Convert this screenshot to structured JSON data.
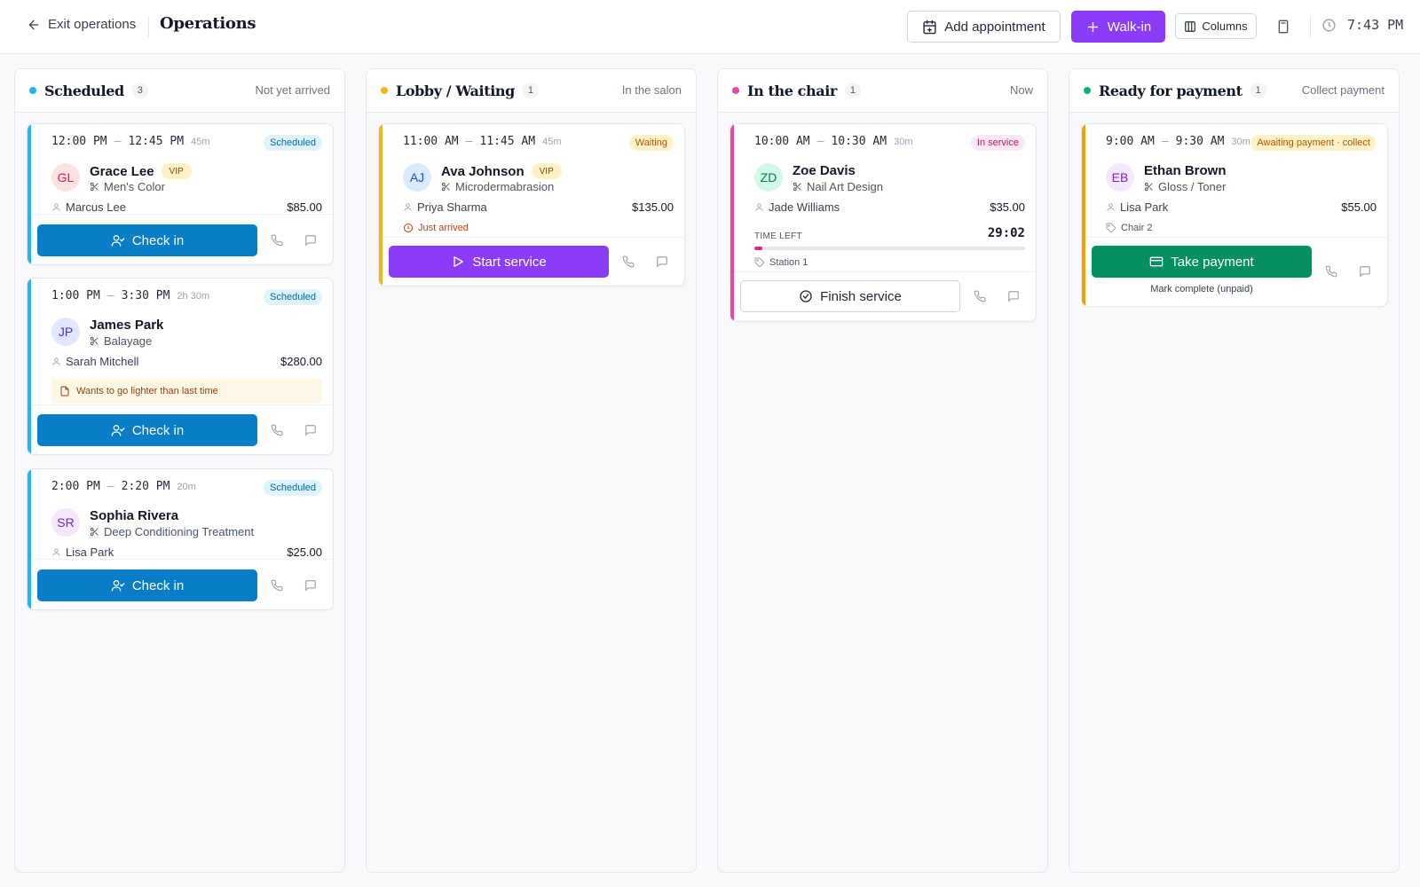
{
  "topbar": {
    "exit_label": "Exit operations",
    "title": "Operations",
    "add_appointment_label": "Add appointment",
    "walkin_label": "Walk-in",
    "columns_label": "Columns",
    "clock_time": "7:43 PM"
  },
  "columns": [
    {
      "title": "Scheduled",
      "count": "3",
      "subtitle": "Not yet arrived",
      "color": "#1fb5ee",
      "cards": [
        {
          "start": "12:00 PM",
          "end": "12:45 PM",
          "duration": "45m",
          "status": "Scheduled",
          "initials": "GL",
          "client": "Grace Lee",
          "vip": "VIP",
          "service": "Men's Color",
          "staff": "Marcus Lee",
          "price": "$85.00",
          "action": "Check in"
        },
        {
          "start": "1:00 PM",
          "end": "3:30 PM",
          "duration": "2h 30m",
          "status": "Scheduled",
          "initials": "JP",
          "client": "James Park",
          "service": "Balayage",
          "staff": "Sarah Mitchell",
          "price": "$280.00",
          "note": "Wants to go lighter than last time",
          "action": "Check in"
        },
        {
          "start": "2:00 PM",
          "end": "2:20 PM",
          "duration": "20m",
          "status": "Scheduled",
          "initials": "SR",
          "client": "Sophia Rivera",
          "service": "Deep Conditioning Treatment",
          "staff": "Lisa Park",
          "price": "$25.00",
          "action": "Check in"
        }
      ]
    },
    {
      "title": "Lobby / Waiting",
      "count": "1",
      "subtitle": "In the salon",
      "color": "#f5b41b",
      "cards": [
        {
          "start": "11:00 AM",
          "end": "11:45 AM",
          "duration": "45m",
          "status": "Waiting",
          "initials": "AJ",
          "client": "Ava Johnson",
          "vip": "VIP",
          "service": "Microdermabrasion",
          "staff": "Priya Sharma",
          "price": "$135.00",
          "arrived": "Just arrived",
          "action": "Start service"
        }
      ]
    },
    {
      "title": "In the chair",
      "count": "1",
      "subtitle": "Now",
      "color": "#ec4899",
      "cards": [
        {
          "start": "10:00 AM",
          "end": "10:30 AM",
          "duration": "30m",
          "status": "In service",
          "initials": "ZD",
          "client": "Zoe Davis",
          "service": "Nail Art Design",
          "staff": "Jade Williams",
          "price": "$35.00",
          "time_left_label": "TIME LEFT",
          "time_left": "29:02",
          "progress_fraction": 0.03,
          "station": "Station 1",
          "action": "Finish service"
        }
      ]
    },
    {
      "title": "Ready for payment",
      "count": "1",
      "subtitle": "Collect payment",
      "color": "#10b076",
      "cards": [
        {
          "start": "9:00 AM",
          "end": "9:30 AM",
          "duration": "30m",
          "status": "Awaiting payment · collect",
          "initials": "EB",
          "client": "Ethan Brown",
          "service": "Gloss / Toner",
          "staff": "Lisa Park",
          "price": "$55.00",
          "chair": "Chair 2",
          "action": "Take payment",
          "secondary_action": "Mark complete (unpaid)"
        }
      ]
    }
  ],
  "colors": {
    "check_in": "#0a7dc7",
    "start_service": "#8b3cf7",
    "take_payment": "#05905f",
    "walkin": "#8b3cf7",
    "progress": "#db2777"
  }
}
